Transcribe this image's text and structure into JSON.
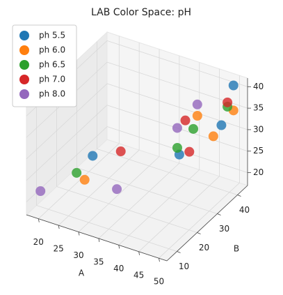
{
  "chart_data": {
    "type": "scatter3d",
    "title": "LAB Color Space: pH",
    "xlabel": "A",
    "ylabel": "B",
    "xlim": [
      17,
      52
    ],
    "ylim": [
      5,
      45
    ],
    "zlim": [
      17,
      42
    ],
    "xticks": [
      20,
      25,
      30,
      35,
      40,
      45,
      50
    ],
    "yticks": [
      10,
      20,
      30,
      40
    ],
    "zticks": [
      20,
      25,
      30,
      35,
      40
    ],
    "grid": true,
    "legend": "upper left",
    "series": [
      {
        "name": "ph 5.5",
        "color": "#1f77b4",
        "x": [
          50,
          48,
          35,
          32
        ],
        "y": [
          42,
          40,
          45,
          8
        ],
        "z": [
          41,
          32,
          19,
          34
        ]
      },
      {
        "name": "ph 6.0",
        "color": "#ff7f0e",
        "x": [
          49,
          47,
          40,
          31
        ],
        "y": [
          44,
          38,
          44,
          6
        ],
        "z": [
          34,
          30,
          30,
          29
        ]
      },
      {
        "name": "ph 6.5",
        "color": "#2ca02c",
        "x": [
          48,
          41,
          35,
          29
        ],
        "y": [
          43,
          40,
          44,
          6
        ],
        "z": [
          35,
          29,
          21,
          30
        ]
      },
      {
        "name": "ph 7.0",
        "color": "#d62728",
        "x": [
          48,
          37,
          38,
          38
        ],
        "y": [
          43,
          44,
          44,
          10
        ],
        "z": [
          36,
          28,
          21,
          36
        ]
      },
      {
        "name": "ph 8.0",
        "color": "#9467bd",
        "x": [
          42,
          37,
          20,
          32
        ],
        "y": [
          40,
          40,
          6,
          20
        ],
        "z": [
          35,
          28,
          23,
          21
        ]
      }
    ]
  }
}
